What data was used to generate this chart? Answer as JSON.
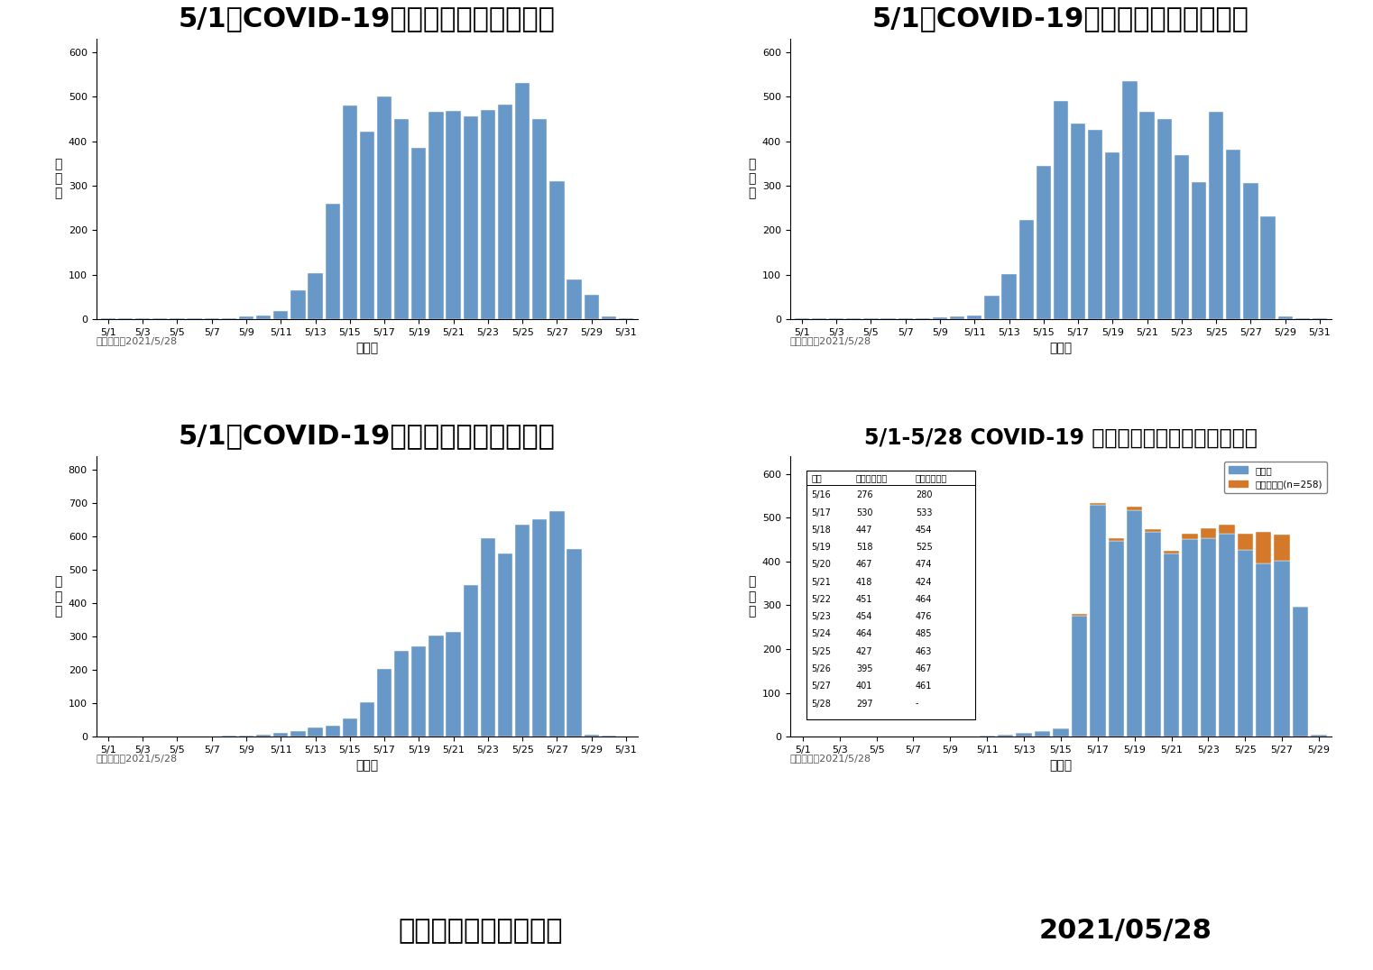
{
  "title1": "5/1起COVID-19本土確定病例採檢趨勢",
  "title2": "5/1起COVID-19本土確定病例發病趨勢",
  "title3": "5/1起COVID-19本土確定病例研判趨勢",
  "title4": "5/1-5/28 COVID-19 本土確定病例校正回歸後趨勢",
  "xlabel1": "採檢日",
  "xlabel2": "發病日",
  "xlabel3": "研判日",
  "xlabel4": "研判日",
  "ylabel": "病\n例\n數",
  "update_label": "資料更新：2021/5/28",
  "footer_left": "中央流行疫情指揮中心",
  "footer_right": "2021/05/28",
  "bar_color": "#6898C8",
  "bar_color_orange": "#D4782A",
  "legend_blue": "疧例數",
  "legend_orange": "校正回歸數(n=258)",
  "dates_ticks1": [
    "5/1",
    "5/3",
    "5/5",
    "5/7",
    "5/9",
    "5/11",
    "5/13",
    "5/15",
    "5/17",
    "5/19",
    "5/21",
    "5/23",
    "5/25",
    "5/27",
    "5/29",
    "5/31"
  ],
  "dates_ticks2": [
    "5/1",
    "5/3",
    "5/5",
    "5/7",
    "5/9",
    "5/11",
    "5/13",
    "5/15",
    "5/17",
    "5/19",
    "5/21",
    "5/23",
    "5/25",
    "5/27",
    "5/29",
    "5/31"
  ],
  "dates_ticks3": [
    "5/1",
    "5/3",
    "5/5",
    "5/7",
    "5/9",
    "5/11",
    "5/13",
    "5/15",
    "5/17",
    "5/19",
    "5/21",
    "5/23",
    "5/25",
    "5/27",
    "5/29",
    "5/31"
  ],
  "dates_ticks4": [
    "5/1",
    "5/3",
    "5/5",
    "5/7",
    "5/9",
    "5/11",
    "5/13",
    "5/15",
    "5/17",
    "5/19",
    "5/21",
    "5/23",
    "5/25",
    "5/27",
    "5/29"
  ],
  "chart1_values": [
    2,
    1,
    1,
    1,
    1,
    1,
    1,
    1,
    5,
    8,
    18,
    65,
    103,
    260,
    480,
    422,
    500,
    450,
    385,
    465,
    467,
    455,
    470,
    482,
    530,
    450,
    310,
    90,
    55,
    5,
    2
  ],
  "chart2_values": [
    1,
    1,
    1,
    1,
    1,
    1,
    1,
    1,
    3,
    5,
    8,
    52,
    102,
    222,
    345,
    490,
    440,
    425,
    375,
    535,
    465,
    450,
    368,
    307,
    465,
    380,
    305,
    230,
    5,
    2,
    1
  ],
  "chart3_values": [
    1,
    1,
    1,
    1,
    1,
    1,
    1,
    2,
    3,
    5,
    12,
    18,
    28,
    32,
    55,
    103,
    203,
    258,
    272,
    303,
    313,
    455,
    595,
    548,
    635,
    652,
    675,
    563,
    5,
    2,
    1
  ],
  "chart4_blue_values": [
    1,
    1,
    1,
    1,
    1,
    1,
    1,
    1,
    1,
    1,
    3,
    5,
    8,
    12,
    18,
    276,
    530,
    447,
    518,
    467,
    418,
    451,
    454,
    464,
    427,
    395,
    401,
    297,
    5
  ],
  "chart4_orange_extra": [
    0,
    0,
    0,
    0,
    0,
    0,
    0,
    0,
    0,
    0,
    0,
    0,
    0,
    0,
    0,
    4,
    3,
    7,
    7,
    7,
    6,
    13,
    22,
    21,
    36,
    72,
    60,
    0,
    0
  ],
  "table_data": {
    "headers": [
      "日期",
      "已公布病例數",
      "校正後病例數"
    ],
    "rows": [
      [
        "5/16",
        "276",
        "280"
      ],
      [
        "5/17",
        "530",
        "533"
      ],
      [
        "5/18",
        "447",
        "454"
      ],
      [
        "5/19",
        "518",
        "525"
      ],
      [
        "5/20",
        "467",
        "474"
      ],
      [
        "5/21",
        "418",
        "424"
      ],
      [
        "5/22",
        "451",
        "464"
      ],
      [
        "5/23",
        "454",
        "476"
      ],
      [
        "5/24",
        "464",
        "485"
      ],
      [
        "5/25",
        "427",
        "463"
      ],
      [
        "5/26",
        "395",
        "467"
      ],
      [
        "5/27",
        "401",
        "461"
      ],
      [
        "5/28",
        "297",
        "-"
      ]
    ]
  },
  "bg_color": "#FFFFFF",
  "title_fontsize": 22,
  "label_fontsize": 10,
  "tick_fontsize": 8,
  "update_fontsize": 8,
  "table_fontsize": 7
}
